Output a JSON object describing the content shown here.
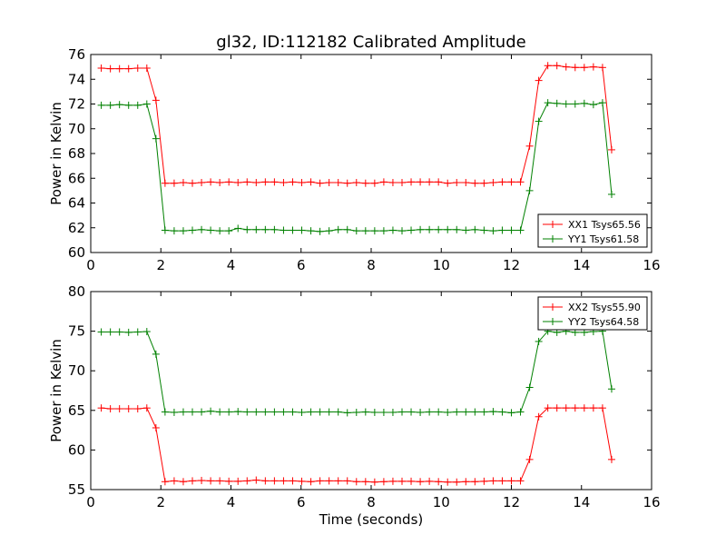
{
  "chart_data": [
    {
      "type": "line",
      "title": "gl32, ID:112182 Calibrated Amplitude",
      "xlabel": "",
      "ylabel": "Power in Kelvin",
      "xlim": [
        0,
        16
      ],
      "ylim": [
        60,
        76
      ],
      "xticks": [
        "0",
        "2",
        "4",
        "6",
        "8",
        "10",
        "12",
        "14",
        "16"
      ],
      "yticks": [
        "60",
        "62",
        "64",
        "66",
        "68",
        "70",
        "72",
        "74",
        "76"
      ],
      "legend_position": "lower-right",
      "x": [
        0.3,
        0.56,
        0.82,
        1.08,
        1.34,
        1.6,
        1.86,
        2.12,
        2.38,
        2.64,
        2.9,
        3.16,
        3.42,
        3.68,
        3.94,
        4.2,
        4.46,
        4.72,
        4.98,
        5.24,
        5.5,
        5.76,
        6.02,
        6.28,
        6.54,
        6.8,
        7.06,
        7.32,
        7.58,
        7.84,
        8.1,
        8.36,
        8.62,
        8.88,
        9.14,
        9.4,
        9.66,
        9.92,
        10.18,
        10.44,
        10.7,
        10.96,
        11.22,
        11.48,
        11.74,
        12.0,
        12.26,
        12.52,
        12.78,
        13.04,
        13.3,
        13.56,
        13.82,
        14.08,
        14.34,
        14.6,
        14.86
      ],
      "series": [
        {
          "name": "XX1 Tsys65.56",
          "color": "#ff0000",
          "values": [
            74.9,
            74.85,
            74.85,
            74.85,
            74.9,
            74.9,
            72.3,
            65.6,
            65.6,
            65.65,
            65.6,
            65.65,
            65.7,
            65.65,
            65.7,
            65.65,
            65.7,
            65.65,
            65.7,
            65.7,
            65.65,
            65.7,
            65.65,
            65.7,
            65.6,
            65.65,
            65.65,
            65.6,
            65.65,
            65.6,
            65.6,
            65.7,
            65.65,
            65.65,
            65.7,
            65.7,
            65.7,
            65.7,
            65.6,
            65.65,
            65.65,
            65.6,
            65.6,
            65.65,
            65.7,
            65.7,
            65.7,
            68.6,
            73.9,
            75.1,
            75.1,
            75.0,
            74.95,
            74.95,
            75.0,
            74.95,
            68.3
          ]
        },
        {
          "name": "YY1 Tsys61.58",
          "color": "#008000",
          "values": [
            71.9,
            71.9,
            71.95,
            71.9,
            71.9,
            72.0,
            69.2,
            61.8,
            61.75,
            61.75,
            61.8,
            61.85,
            61.8,
            61.75,
            61.75,
            61.95,
            61.85,
            61.85,
            61.85,
            61.85,
            61.8,
            61.8,
            61.8,
            61.75,
            61.7,
            61.75,
            61.85,
            61.85,
            61.75,
            61.75,
            61.75,
            61.75,
            61.8,
            61.75,
            61.8,
            61.85,
            61.85,
            61.85,
            61.85,
            61.85,
            61.8,
            61.85,
            61.8,
            61.75,
            61.8,
            61.8,
            61.8,
            65.0,
            70.6,
            72.1,
            72.05,
            72.0,
            72.0,
            72.05,
            71.95,
            72.1,
            64.7
          ]
        }
      ]
    },
    {
      "type": "line",
      "title": "",
      "xlabel": "Time (seconds)",
      "ylabel": "Power in Kelvin",
      "xlim": [
        0,
        16
      ],
      "ylim": [
        55,
        80
      ],
      "xticks": [
        "0",
        "2",
        "4",
        "6",
        "8",
        "10",
        "12",
        "14",
        "16"
      ],
      "yticks": [
        "55",
        "60",
        "65",
        "70",
        "75",
        "80"
      ],
      "legend_position": "upper-right",
      "x": [
        0.3,
        0.56,
        0.82,
        1.08,
        1.34,
        1.6,
        1.86,
        2.12,
        2.38,
        2.64,
        2.9,
        3.16,
        3.42,
        3.68,
        3.94,
        4.2,
        4.46,
        4.72,
        4.98,
        5.24,
        5.5,
        5.76,
        6.02,
        6.28,
        6.54,
        6.8,
        7.06,
        7.32,
        7.58,
        7.84,
        8.1,
        8.36,
        8.62,
        8.88,
        9.14,
        9.4,
        9.66,
        9.92,
        10.18,
        10.44,
        10.7,
        10.96,
        11.22,
        11.48,
        11.74,
        12.0,
        12.26,
        12.52,
        12.78,
        13.04,
        13.3,
        13.56,
        13.82,
        14.08,
        14.34,
        14.6,
        14.86
      ],
      "series": [
        {
          "name": "XX2 Tsys55.90",
          "color": "#ff0000",
          "values": [
            65.3,
            65.2,
            65.2,
            65.2,
            65.2,
            65.3,
            62.8,
            56.0,
            56.1,
            56.0,
            56.1,
            56.15,
            56.1,
            56.1,
            56.05,
            56.05,
            56.1,
            56.2,
            56.1,
            56.1,
            56.1,
            56.1,
            56.05,
            56.0,
            56.1,
            56.1,
            56.1,
            56.1,
            56.0,
            56.0,
            55.95,
            56.0,
            56.05,
            56.05,
            56.05,
            56.0,
            56.05,
            56.0,
            55.95,
            55.95,
            56.0,
            56.0,
            56.05,
            56.1,
            56.1,
            56.1,
            56.1,
            58.8,
            64.2,
            65.3,
            65.3,
            65.3,
            65.3,
            65.3,
            65.3,
            65.3,
            58.8
          ]
        },
        {
          "name": "YY2 Tsys64.58",
          "color": "#008000",
          "values": [
            74.9,
            74.9,
            74.9,
            74.85,
            74.9,
            74.95,
            72.1,
            64.8,
            64.75,
            64.8,
            64.8,
            64.8,
            64.9,
            64.8,
            64.8,
            64.85,
            64.8,
            64.8,
            64.8,
            64.8,
            64.8,
            64.8,
            64.75,
            64.8,
            64.8,
            64.8,
            64.8,
            64.7,
            64.75,
            64.8,
            64.75,
            64.75,
            64.75,
            64.8,
            64.8,
            64.75,
            64.8,
            64.8,
            64.75,
            64.8,
            64.8,
            64.8,
            64.8,
            64.85,
            64.8,
            64.7,
            64.8,
            67.9,
            73.7,
            75.0,
            74.85,
            75.0,
            74.85,
            74.85,
            74.95,
            75.0,
            67.7
          ]
        }
      ]
    }
  ]
}
